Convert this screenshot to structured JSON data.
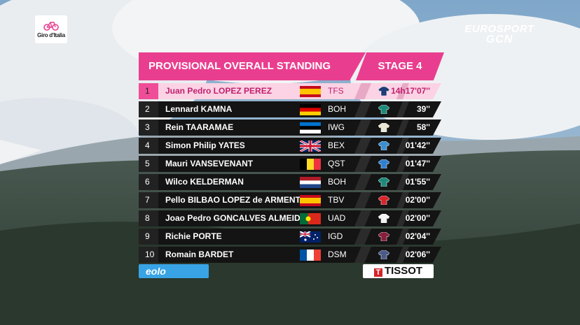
{
  "brand": {
    "giro_logo_text": "Giro d'Italia",
    "broadcaster_line1": "EUROSPORT",
    "broadcaster_line2": "GCN"
  },
  "header": {
    "title": "PROVISIONAL OVERALL STANDING",
    "stage": "STAGE 4"
  },
  "colors": {
    "accent": "#e93e8f",
    "leader_row": "#fbd3e4",
    "row_bg": "#141414"
  },
  "standings": [
    {
      "pos": "1",
      "name": "Juan Pedro LOPEZ PEREZ",
      "team": "TFS",
      "time": "14h17'07''",
      "flag": "spain-flag-icon",
      "jersey_color": "#1e3c78"
    },
    {
      "pos": "2",
      "name": "Lennard KAMNA",
      "team": "BOH",
      "time": "39''",
      "flag": "germany-flag-icon",
      "jersey_color": "#1b8a7a"
    },
    {
      "pos": "3",
      "name": "Rein TAARAMAE",
      "team": "IWG",
      "time": "58''",
      "flag": "estonia-flag-icon",
      "jersey_color": "#e9e6d2"
    },
    {
      "pos": "4",
      "name": "Simon Philip YATES",
      "team": "BEX",
      "time": "01'42''",
      "flag": "uk-flag-icon",
      "jersey_color": "#3a8fd1"
    },
    {
      "pos": "5",
      "name": "Mauri VANSEVENANT",
      "team": "QST",
      "time": "01'47''",
      "flag": "belgium-flag-icon",
      "jersey_color": "#2f7fd0"
    },
    {
      "pos": "6",
      "name": "Wilco KELDERMAN",
      "team": "BOH",
      "time": "01'55''",
      "flag": "netherlands-flag-icon",
      "jersey_color": "#1b8a7a"
    },
    {
      "pos": "7",
      "name": "Pello BILBAO LOPEZ de ARMENTIA",
      "team": "TBV",
      "time": "02'00''",
      "flag": "spain-flag-icon",
      "jersey_color": "#d9242a"
    },
    {
      "pos": "8",
      "name": "Joao Pedro GONCALVES ALMEIDA",
      "team": "UAD",
      "time": "02'00''",
      "flag": "portugal-flag-icon",
      "jersey_color": "#f3f3f3"
    },
    {
      "pos": "9",
      "name": "Richie PORTE",
      "team": "IGD",
      "time": "02'04''",
      "flag": "australia-flag-icon",
      "jersey_color": "#8a1e3c"
    },
    {
      "pos": "10",
      "name": "Romain BARDET",
      "team": "DSM",
      "time": "02'06''",
      "flag": "france-flag-icon",
      "jersey_color": "#4a5a8a"
    }
  ],
  "sponsors": {
    "left": "eolo",
    "right": "TISSOT",
    "right_mark": "T"
  }
}
